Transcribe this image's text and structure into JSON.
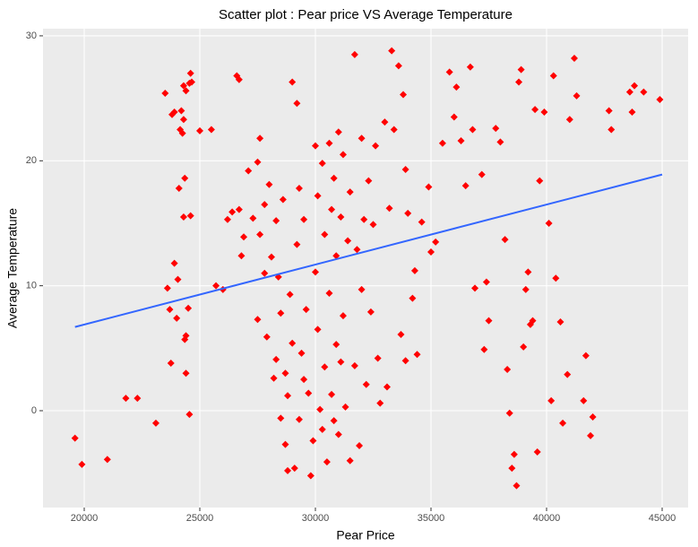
{
  "chart_data": {
    "type": "scatter",
    "title": "Scatter plot : Pear price VS Average Temperature",
    "x_label": "Pear Price",
    "y_label": "Average Temperature",
    "color": "#ff0000",
    "xlim": [
      18217,
      46124
    ],
    "ylim": [
      -7.75,
      30.57
    ],
    "xticks": [
      20000,
      25000,
      30000,
      35000,
      40000,
      45000
    ],
    "yticks": [
      0,
      10,
      20,
      30
    ],
    "grid": true,
    "x": [
      19600,
      19900,
      21000,
      21800,
      22300,
      23100,
      23500,
      23600,
      23700,
      23750,
      23800,
      23900,
      23900,
      24000,
      24050,
      24100,
      24150,
      24200,
      24250,
      24300,
      24300,
      24350,
      24300,
      24400,
      24350,
      24400,
      24500,
      24400,
      24550,
      24600,
      24650,
      24550,
      24600,
      25000,
      25500,
      25700,
      26000,
      26200,
      26400,
      26600,
      26700,
      26700,
      26800,
      26900,
      27100,
      27300,
      27500,
      27600,
      27500,
      27600,
      27800,
      27800,
      27900,
      28000,
      28100,
      28200,
      28300,
      28300,
      28400,
      28500,
      28500,
      28600,
      28700,
      28700,
      28800,
      28800,
      28900,
      29000,
      29000,
      29100,
      29200,
      29200,
      29300,
      29300,
      29400,
      29500,
      29500,
      29600,
      29700,
      29800,
      29900,
      30000,
      30000,
      30100,
      30100,
      30200,
      30300,
      30300,
      30400,
      30400,
      30500,
      30600,
      30600,
      30700,
      30700,
      30800,
      30800,
      30900,
      30900,
      31000,
      31000,
      31100,
      31100,
      31200,
      31200,
      31300,
      31400,
      31500,
      31500,
      31700,
      31700,
      31800,
      31900,
      32000,
      32000,
      32100,
      32200,
      32300,
      32400,
      32500,
      32600,
      32700,
      32800,
      33000,
      33100,
      33200,
      33300,
      33400,
      33600,
      33700,
      33800,
      33900,
      33900,
      34000,
      34200,
      34300,
      34400,
      34600,
      34900,
      35000,
      35200,
      35500,
      35800,
      36000,
      36100,
      36300,
      36500,
      36700,
      36800,
      36900,
      37200,
      37300,
      37400,
      37500,
      37800,
      38000,
      38200,
      38300,
      38400,
      38500,
      38600,
      38700,
      38800,
      38900,
      39000,
      39100,
      39200,
      39300,
      39400,
      39500,
      39600,
      39700,
      39900,
      40100,
      40200,
      40300,
      40400,
      40600,
      40700,
      40900,
      41000,
      41200,
      41300,
      41600,
      41700,
      41900,
      42000,
      42700,
      42800,
      43600,
      43700,
      44200,
      44900,
      43800
    ],
    "y": [
      -2.2,
      -4.3,
      -3.9,
      1,
      1,
      -1,
      25.4,
      9.8,
      8.1,
      3.8,
      23.7,
      23.9,
      11.8,
      7.4,
      10.5,
      17.8,
      22.5,
      24,
      22.2,
      26,
      23.3,
      18.6,
      15.5,
      6,
      5.7,
      3,
      8.2,
      25.6,
      26.2,
      27,
      26.3,
      -0.3,
      15.6,
      22.4,
      22.5,
      10,
      9.7,
      15.3,
      15.9,
      26.8,
      26.5,
      16.1,
      12.4,
      13.9,
      19.2,
      15.4,
      19.9,
      21.8,
      7.3,
      14.1,
      11,
      16.5,
      5.9,
      18.1,
      12.3,
      2.6,
      15.2,
      4.1,
      10.7,
      -0.6,
      7.8,
      16.9,
      3,
      -2.7,
      -4.8,
      1.2,
      9.3,
      26.3,
      5.4,
      -4.6,
      24.6,
      13.3,
      17.8,
      -0.7,
      4.6,
      15.3,
      2.5,
      8.1,
      1.4,
      -5.2,
      -2.4,
      21.2,
      11.1,
      17.2,
      6.5,
      0.1,
      19.8,
      -1.5,
      14.1,
      3.5,
      -4.1,
      21.4,
      9.4,
      16.1,
      1.3,
      -0.8,
      18.6,
      12.4,
      5.3,
      22.3,
      -1.9,
      15.5,
      3.9,
      20.5,
      7.6,
      0.3,
      13.6,
      17.5,
      -4,
      28.5,
      3.6,
      12.9,
      -2.8,
      21.8,
      9.7,
      15.3,
      2.1,
      18.4,
      7.9,
      14.9,
      21.2,
      4.2,
      0.6,
      23.1,
      1.9,
      16.2,
      28.8,
      22.5,
      27.6,
      6.1,
      25.3,
      19.3,
      4,
      15.8,
      9,
      11.2,
      4.5,
      15.1,
      17.9,
      12.7,
      13.5,
      21.4,
      27.1,
      23.5,
      25.9,
      21.6,
      18,
      27.5,
      22.5,
      9.8,
      18.9,
      4.9,
      10.3,
      7.2,
      22.6,
      21.5,
      13.7,
      3.3,
      -0.2,
      -4.6,
      -3.5,
      -6,
      26.3,
      27.3,
      5.1,
      9.7,
      11.1,
      6.9,
      7.2,
      24.1,
      -3.3,
      18.4,
      23.9,
      15,
      0.8,
      26.8,
      10.6,
      7.1,
      -1,
      2.9,
      23.3,
      28.2,
      25.2,
      0.8,
      4.4,
      -2,
      -0.5,
      24,
      22.5,
      25.5,
      23.9,
      25.5,
      24.9,
      26
    ],
    "trend": {
      "color": "#3366ff",
      "x": [
        19600,
        45000
      ],
      "y": [
        6.7,
        18.9
      ]
    }
  }
}
